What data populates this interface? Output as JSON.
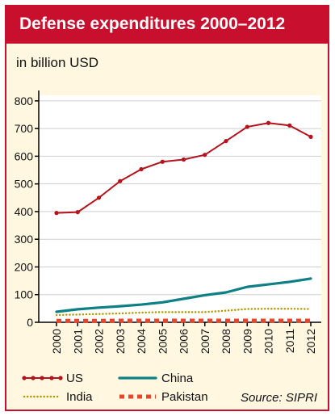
{
  "header": {
    "title": "Defense expenditures 2000–2012"
  },
  "subtitle": "in billion USD",
  "source": "Source: SIPRI",
  "chart_data": {
    "type": "line",
    "title": "Defense expenditures 2000–2012",
    "ylabel": "in billion USD",
    "xlabel": "",
    "x": [
      "2000",
      "2001",
      "2002",
      "2003",
      "2004",
      "2005",
      "2006",
      "2007",
      "2008",
      "2009",
      "2010",
      "2011",
      "2012"
    ],
    "yticks": [
      0,
      100,
      200,
      300,
      400,
      500,
      600,
      700,
      800
    ],
    "ylim": [
      0,
      820
    ],
    "grid": true,
    "legend_placement": "bottom",
    "series": [
      {
        "name": "US",
        "color": "#b5121b",
        "style": "dots-line",
        "values": [
          395,
          398,
          450,
          510,
          553,
          580,
          588,
          605,
          655,
          706,
          720,
          711,
          670
        ]
      },
      {
        "name": "China",
        "color": "#0f7f86",
        "style": "solid",
        "values": [
          38,
          47,
          53,
          58,
          64,
          72,
          85,
          98,
          108,
          128,
          137,
          146,
          158
        ]
      },
      {
        "name": "India",
        "color": "#b59a00",
        "style": "dotted",
        "values": [
          26,
          28,
          30,
          32,
          35,
          37,
          37,
          37,
          42,
          48,
          49,
          49,
          48
        ]
      },
      {
        "name": "Pakistan",
        "color": "#e8452c",
        "style": "dashed",
        "values": [
          5,
          5,
          5,
          6,
          6,
          6,
          6,
          6,
          6,
          6,
          6,
          6,
          6
        ]
      }
    ]
  }
}
